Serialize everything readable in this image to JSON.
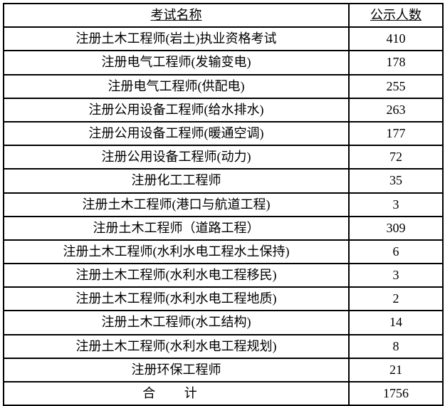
{
  "table": {
    "header": {
      "name": "考试名称",
      "count": "公示人数"
    },
    "rows": [
      {
        "name": "注册土木工程师(岩土)执业资格考试",
        "count": "410"
      },
      {
        "name": "注册电气工程师(发输变电)",
        "count": "178"
      },
      {
        "name": "注册电气工程师(供配电)",
        "count": "255"
      },
      {
        "name": "注册公用设备工程师(给水排水)",
        "count": "263"
      },
      {
        "name": "注册公用设备工程师(暖通空调)",
        "count": "177"
      },
      {
        "name": "注册公用设备工程师(动力)",
        "count": "72"
      },
      {
        "name": "注册化工工程师",
        "count": "35"
      },
      {
        "name": "注册土木工程师(港口与航道工程)",
        "count": "3"
      },
      {
        "name": "注册土木工程师（道路工程）",
        "count": "309"
      },
      {
        "name": "注册土木工程师(水利水电工程水土保持)",
        "count": "6"
      },
      {
        "name": "注册土木工程师(水利水电工程移民)",
        "count": "3"
      },
      {
        "name": "注册土木工程师(水利水电工程地质)",
        "count": "2"
      },
      {
        "name": "注册土木工程师(水工结构)",
        "count": "14"
      },
      {
        "name": "注册土木工程师(水利水电工程规划)",
        "count": "8"
      },
      {
        "name": "注册环保工程师",
        "count": "21"
      }
    ],
    "total": {
      "label": "合 计",
      "value": "1756"
    },
    "styling": {
      "border_color": "#000000",
      "background_color": "#ffffff",
      "text_color": "#000000",
      "font_size": 18,
      "col_name_width": 485,
      "col_count_width": 132
    }
  }
}
